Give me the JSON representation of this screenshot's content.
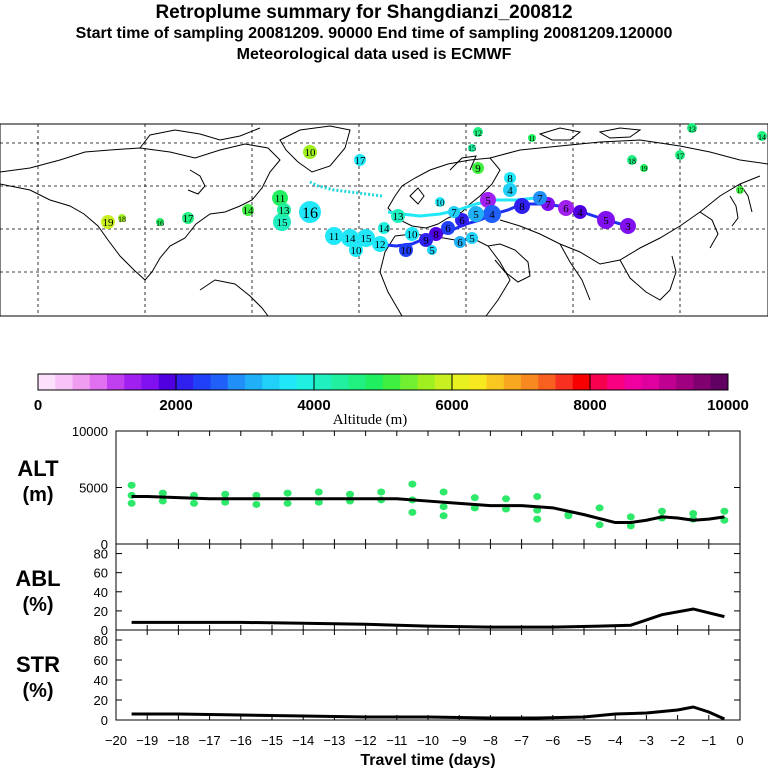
{
  "header": {
    "title": "Retroplume summary for Shangdianzi_200812",
    "sampling_line": "Start time of sampling 20081209. 90000     End time of sampling 20081209.120000",
    "met_line": "Meteorological data used is ECMWF"
  },
  "colors": {
    "line": "#000000",
    "scatter": "#2ee86a",
    "map_land": "#000000"
  },
  "colorbar": {
    "label": "Altitude (m)",
    "ticks": [
      "0",
      "2000",
      "4000",
      "6000",
      "8000",
      "10000"
    ],
    "tick_values": [
      0,
      2000,
      4000,
      6000,
      8000,
      10000
    ],
    "swatches": [
      "#fce0fc",
      "#f8c4f8",
      "#f09cf0",
      "#e070f0",
      "#c040f0",
      "#a020f0",
      "#8010f0",
      "#5000e0",
      "#3020f0",
      "#2040f8",
      "#2060f8",
      "#2090f8",
      "#20b0f8",
      "#20d0f8",
      "#20e8f8",
      "#20f0e0",
      "#20f0c0",
      "#20f0a0",
      "#20f080",
      "#20f060",
      "#40f040",
      "#70f030",
      "#a0f020",
      "#c8f020",
      "#e8f020",
      "#f8e820",
      "#f8c820",
      "#f8a820",
      "#f88820",
      "#f86020",
      "#f83020",
      "#f80000",
      "#f80050",
      "#f80080",
      "#f000a0",
      "#e000a0",
      "#c00090",
      "#a00080",
      "#800070",
      "#600060"
    ]
  },
  "markers": {
    "altitude": {
      "label": "Altitude (m)"
    },
    "trajectory_labels": [
      "1",
      "2",
      "3",
      "4",
      "5",
      "6",
      "7",
      "8",
      "9",
      "10",
      "11",
      "12",
      "13",
      "14",
      "15",
      "16",
      "17",
      "18",
      "19"
    ]
  },
  "chart_data": [
    {
      "id": "altitude",
      "type": "line",
      "panel_label_1": "ALT",
      "panel_label_2": "(m)",
      "ylim": [
        0,
        10000
      ],
      "yticks": [
        "10000",
        "5000",
        "0"
      ],
      "ytick_values": [
        10000,
        5000,
        0
      ],
      "x": [
        -19.5,
        -19,
        -18,
        -17,
        -16,
        -15,
        -14,
        -13,
        -12,
        -11,
        -10,
        -9,
        -8,
        -7,
        -6,
        -5,
        -4,
        -3.5,
        -3,
        -2.5,
        -2,
        -1.5,
        -1,
        -0.5
      ],
      "y": [
        4200,
        4200,
        4100,
        4000,
        4000,
        4000,
        4000,
        4000,
        4000,
        4000,
        3800,
        3600,
        3400,
        3400,
        3200,
        2600,
        1900,
        1900,
        2100,
        2400,
        2300,
        2100,
        2200,
        2400
      ],
      "scatter_x": [
        -19.5,
        -19.5,
        -19.5,
        -18.5,
        -18.5,
        -17.5,
        -17.5,
        -16.5,
        -16.5,
        -15.5,
        -15.5,
        -14.5,
        -14.5,
        -13.5,
        -13.5,
        -12.5,
        -12.5,
        -11.5,
        -11.5,
        -10.5,
        -10.5,
        -10.5,
        -9.5,
        -9.5,
        -9.5,
        -8.5,
        -8.5,
        -7.5,
        -7.5,
        -6.5,
        -6.5,
        -6.5,
        -5.5,
        -5.5,
        -4.5,
        -4.5,
        -3.5,
        -3.5,
        -2.5,
        -2.5,
        -1.5,
        -1.5,
        -0.5,
        -0.5
      ],
      "scatter_y": [
        5200,
        4300,
        3600,
        4500,
        3800,
        4300,
        3600,
        4400,
        3700,
        4300,
        3500,
        4500,
        3600,
        4600,
        3700,
        4400,
        3800,
        4600,
        3900,
        5300,
        3900,
        2800,
        4600,
        3300,
        2500,
        4100,
        3200,
        4000,
        3100,
        4200,
        3000,
        2200,
        2600,
        2500,
        3200,
        1700,
        2400,
        1600,
        2900,
        2300,
        2700,
        2200,
        2900,
        2100
      ]
    },
    {
      "id": "abl",
      "type": "line",
      "panel_label_1": "ABL",
      "panel_label_2": "(%)",
      "ylim": [
        0,
        90
      ],
      "yticks": [
        "80",
        "60",
        "40",
        "20",
        "0"
      ],
      "ytick_values": [
        80,
        60,
        40,
        20,
        0
      ],
      "x": [
        -19.5,
        -18,
        -16,
        -14,
        -12,
        -10,
        -8,
        -6,
        -4.5,
        -3.5,
        -2.5,
        -1.5,
        -1,
        -0.5
      ],
      "y": [
        8,
        8,
        8,
        7,
        6,
        4,
        3,
        3,
        4,
        5,
        16,
        22,
        18,
        14
      ]
    },
    {
      "id": "str",
      "type": "line",
      "panel_label_1": "STR",
      "panel_label_2": "(%)",
      "ylim": [
        0,
        90
      ],
      "yticks": [
        "80",
        "60",
        "40",
        "20",
        "0"
      ],
      "ytick_values": [
        80,
        60,
        40,
        20,
        0
      ],
      "xlabel": "Travel time (days)",
      "xticks": [
        "−20",
        "−19",
        "−18",
        "−17",
        "−16",
        "−15",
        "−14",
        "−13",
        "−12",
        "−11",
        "−10",
        "−9",
        "−8",
        "−7",
        "−6",
        "−5",
        "−4",
        "−3",
        "−2",
        "−1",
        "0"
      ],
      "xtick_values": [
        -20,
        -19,
        -18,
        -17,
        -16,
        -15,
        -14,
        -13,
        -12,
        -11,
        -10,
        -9,
        -8,
        -7,
        -6,
        -5,
        -4,
        -3,
        -2,
        -1,
        0
      ],
      "xlim": [
        -20,
        0
      ],
      "x": [
        -19.5,
        -18,
        -16,
        -14,
        -12,
        -10,
        -8,
        -6.5,
        -5,
        -4,
        -3,
        -2,
        -1.5,
        -1,
        -0.5
      ],
      "y": [
        6,
        6,
        5,
        4,
        3,
        3,
        2,
        2,
        3,
        6,
        7,
        10,
        13,
        8,
        1
      ]
    }
  ]
}
